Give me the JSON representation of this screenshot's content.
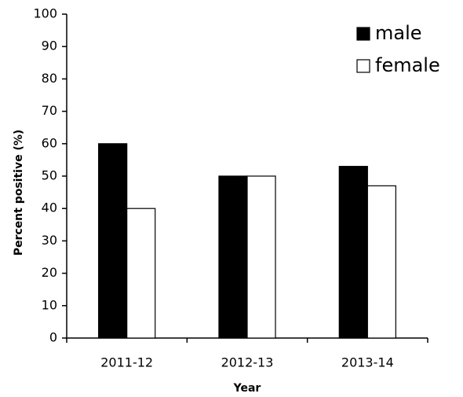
{
  "chart_data": {
    "type": "bar",
    "categories": [
      "2011-12",
      "2012-13",
      "2013-14"
    ],
    "series": [
      {
        "name": "male",
        "color": "#000000",
        "values": [
          60,
          50,
          53
        ]
      },
      {
        "name": "female",
        "color": "#ffffff",
        "values": [
          40,
          50,
          47
        ]
      }
    ],
    "xlabel": "Year",
    "ylabel": "Percent positive (%)",
    "ylim": [
      0,
      100
    ],
    "yticks": [
      0,
      10,
      20,
      30,
      40,
      50,
      60,
      70,
      80,
      90,
      100
    ],
    "grid": false,
    "legend": "upper right"
  }
}
